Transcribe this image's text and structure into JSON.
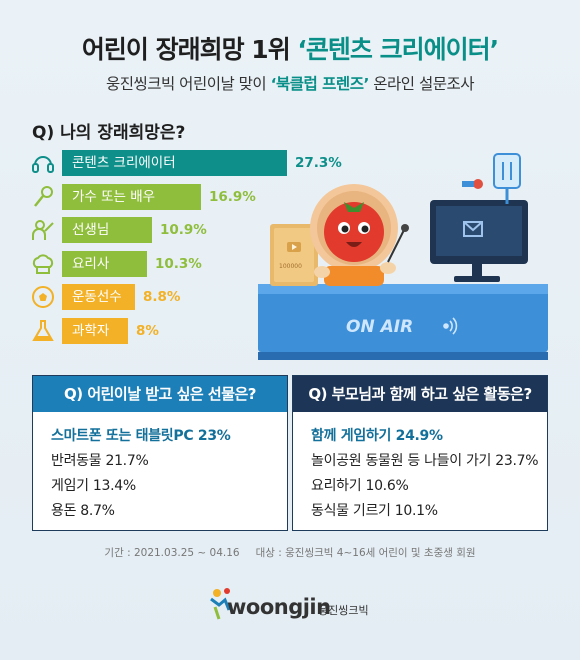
{
  "header": {
    "title_main": "어린이 장래희망 1위 ",
    "title_highlight": "‘콘텐츠 크리에이터’",
    "subtitle_pre": "웅진씽크빅 어린이날 맞이 ",
    "subtitle_highlight": "‘북클럽 프렌즈’",
    "subtitle_post": " 온라인 설문조사"
  },
  "chart_data": {
    "type": "bar",
    "title": "Q) 나의 장래희망은?",
    "categories": [
      "콘텐츠 크리에이터",
      "가수 또는 배우",
      "선생님",
      "요리사",
      "운동선수",
      "과학자"
    ],
    "values": [
      27.3,
      16.9,
      10.9,
      10.3,
      8.8,
      8
    ],
    "value_labels": [
      "27.3%",
      "16.9%",
      "10.9%",
      "10.3%",
      "8.8%",
      "8%"
    ],
    "icons": [
      "headset-icon",
      "microphone-icon",
      "teacher-icon",
      "chef-hat-icon",
      "soccer-ball-icon",
      "flask-icon"
    ],
    "colors": [
      "#0e8f8a",
      "#8fbd3c",
      "#8fbd3c",
      "#8fbd3c",
      "#f2b126",
      "#f2b126"
    ],
    "xlim": [
      0,
      27.3
    ]
  },
  "illustration": {
    "sign_text": "ON AIR",
    "plaque_text": "100000"
  },
  "gifts": {
    "question": "Q) 어린이날 받고 싶은 선물은?",
    "items": [
      "스마트폰 또는 태블릿PC 23%",
      "반려동물 21.7%",
      "게임기 13.4%",
      "용돈 8.7%"
    ],
    "header_color": "#1c7fb8"
  },
  "activities": {
    "question": "Q) 부모님과 함께 하고 싶은 활동은?",
    "items": [
      "함께 게임하기 24.9%",
      "놀이공원 동물원 등 나들이 가기 23.7%",
      "요리하기 10.6%",
      "동식물 기르기 10.1%"
    ],
    "header_color": "#1d3556"
  },
  "footnote": {
    "period": "기간 : 2021.03.25 ~ 04.16",
    "target": "대상 : 웅진씽크빅 4~16세 어린이 및 초중생 회원"
  },
  "logo": {
    "brand": "woongjin",
    "sub": "웅진씽크빅"
  }
}
